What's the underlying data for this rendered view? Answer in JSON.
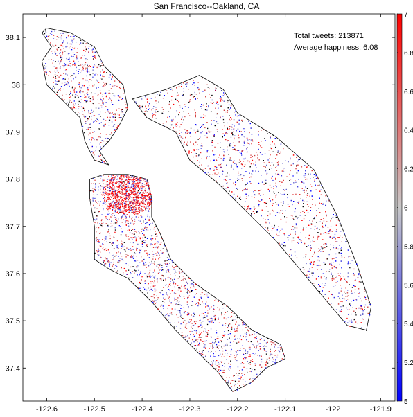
{
  "map": {
    "title": "San Francisco--Oakland, CA",
    "xlim": [
      -122.65,
      -121.87
    ],
    "ylim": [
      37.33,
      38.15
    ],
    "x_ticks": [
      -122.6,
      -122.5,
      -122.4,
      -122.3,
      -122.2,
      -122.1,
      -122.0,
      -121.9
    ],
    "x_tick_labels": [
      "-122.6",
      "-122.5",
      "-122.4",
      "-122.3",
      "-122.2",
      "-122.1",
      "-122",
      "-121.9"
    ],
    "y_ticks": [
      37.4,
      37.5,
      37.6,
      37.7,
      37.8,
      37.9,
      38.0,
      38.1
    ],
    "y_tick_labels": [
      "37.4",
      "37.5",
      "37.6",
      "37.7",
      "37.8",
      "37.9",
      "38",
      "38.1"
    ],
    "stats": {
      "total_tweets": "Total tweets: 213871",
      "average_happiness": "Average happiness: 6.08"
    },
    "colorbar": {
      "range": [
        5,
        7
      ],
      "ticks": [
        5,
        5.2,
        5.4,
        5.6,
        5.8,
        6,
        6.2,
        6.4,
        6.6,
        6.8,
        7
      ],
      "tick_labels": [
        "5",
        "5.2",
        "5.4",
        "5.6",
        "5.8",
        "6",
        "6.2",
        "6.4",
        "6.6",
        "6.8",
        "7"
      ],
      "colors": {
        "low": "#0000ff",
        "mid": "#c8c8c8",
        "high": "#ff0000"
      }
    },
    "regions": {
      "marin_north": [
        [
          -122.6,
          38.12
        ],
        [
          -122.55,
          38.11
        ],
        [
          -122.5,
          38.08
        ],
        [
          -122.48,
          38.04
        ],
        [
          -122.44,
          38.0
        ],
        [
          -122.43,
          37.95
        ],
        [
          -122.45,
          37.91
        ],
        [
          -122.47,
          37.88
        ],
        [
          -122.49,
          37.86
        ],
        [
          -122.47,
          37.83
        ],
        [
          -122.5,
          37.84
        ],
        [
          -122.52,
          37.88
        ],
        [
          -122.53,
          37.93
        ],
        [
          -122.56,
          37.96
        ],
        [
          -122.6,
          38.0
        ],
        [
          -122.61,
          38.05
        ],
        [
          -122.59,
          38.08
        ],
        [
          -122.61,
          38.11
        ]
      ],
      "sf_peninsula": [
        [
          -122.51,
          37.8
        ],
        [
          -122.48,
          37.81
        ],
        [
          -122.43,
          37.81
        ],
        [
          -122.39,
          37.8
        ],
        [
          -122.38,
          37.76
        ],
        [
          -122.38,
          37.72
        ],
        [
          -122.36,
          37.68
        ],
        [
          -122.34,
          37.63
        ],
        [
          -122.29,
          37.58
        ],
        [
          -122.22,
          37.53
        ],
        [
          -122.17,
          37.48
        ],
        [
          -122.11,
          37.45
        ],
        [
          -122.1,
          37.42
        ],
        [
          -122.14,
          37.4
        ],
        [
          -122.17,
          37.37
        ],
        [
          -122.21,
          37.35
        ],
        [
          -122.24,
          37.39
        ],
        [
          -122.28,
          37.43
        ],
        [
          -122.33,
          37.48
        ],
        [
          -122.38,
          37.54
        ],
        [
          -122.43,
          37.59
        ],
        [
          -122.47,
          37.61
        ],
        [
          -122.5,
          37.63
        ],
        [
          -122.5,
          37.7
        ],
        [
          -122.51,
          37.76
        ]
      ],
      "east_bay": [
        [
          -122.42,
          37.97
        ],
        [
          -122.35,
          37.99
        ],
        [
          -122.28,
          38.02
        ],
        [
          -122.23,
          37.99
        ],
        [
          -122.2,
          37.94
        ],
        [
          -122.12,
          37.89
        ],
        [
          -122.04,
          37.82
        ],
        [
          -121.99,
          37.72
        ],
        [
          -121.95,
          37.62
        ],
        [
          -121.92,
          37.53
        ],
        [
          -121.93,
          37.48
        ],
        [
          -121.97,
          37.49
        ],
        [
          -122.02,
          37.55
        ],
        [
          -122.07,
          37.61
        ],
        [
          -122.12,
          37.67
        ],
        [
          -122.18,
          37.73
        ],
        [
          -122.24,
          37.79
        ],
        [
          -122.3,
          37.84
        ],
        [
          -122.33,
          37.9
        ],
        [
          -122.39,
          37.93
        ]
      ]
    }
  }
}
